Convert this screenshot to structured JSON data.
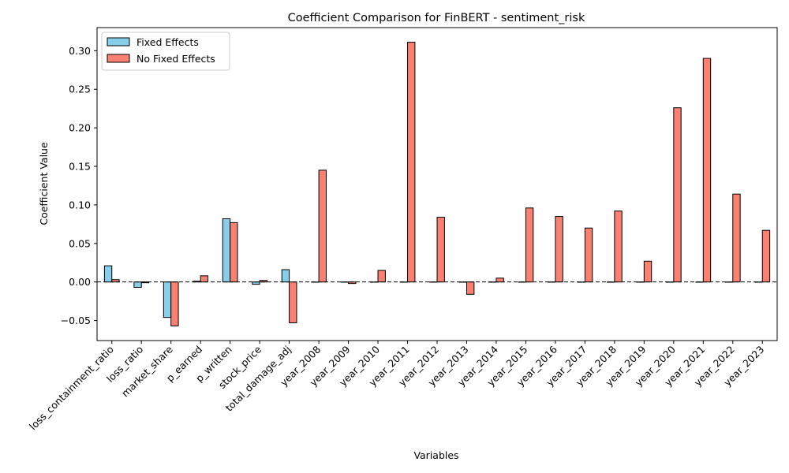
{
  "colors": {
    "fixed_effects": "#87ceeb",
    "no_fixed_effects": "#fa8072",
    "bar_edge": "#000000",
    "zero_line": "#000000"
  },
  "chart_data": {
    "type": "bar",
    "title": "Coefficient Comparison for FinBERT - sentiment_risk",
    "xlabel": "Variables",
    "ylabel": "Coefficient Value",
    "ylim": [
      -0.076,
      0.33
    ],
    "yticks": [
      -0.05,
      0.0,
      0.05,
      0.1,
      0.15,
      0.2,
      0.25,
      0.3
    ],
    "ytick_labels": [
      "−0.05",
      "0.00",
      "0.05",
      "0.10",
      "0.15",
      "0.20",
      "0.25",
      "0.30"
    ],
    "grid": false,
    "legend_position": "top-left",
    "zero_line": "dashed",
    "categories": [
      "loss_containment_ratio",
      "loss_ratio",
      "market_share",
      "p_earned",
      "p_written",
      "stock_price",
      "total_damage_adj",
      "year_2008",
      "year_2009",
      "year_2010",
      "year_2011",
      "year_2012",
      "year_2013",
      "year_2014",
      "year_2015",
      "year_2016",
      "year_2017",
      "year_2018",
      "year_2019",
      "year_2020",
      "year_2021",
      "year_2022",
      "year_2023"
    ],
    "series": [
      {
        "name": "Fixed Effects",
        "color": "#87ceeb",
        "values": [
          0.021,
          -0.007,
          -0.046,
          0.001,
          0.082,
          -0.003,
          0.016,
          0,
          0,
          0,
          0,
          0,
          0,
          0,
          0,
          0,
          0,
          0,
          0,
          0,
          0,
          0,
          0
        ]
      },
      {
        "name": "No Fixed Effects",
        "color": "#fa8072",
        "values": [
          0.003,
          -0.001,
          -0.057,
          0.008,
          0.077,
          0.002,
          -0.053,
          0.145,
          -0.002,
          0.015,
          0.311,
          0.084,
          -0.016,
          0.005,
          0.096,
          0.085,
          0.07,
          0.092,
          0.027,
          0.226,
          0.29,
          0.114,
          0.067
        ]
      }
    ]
  }
}
